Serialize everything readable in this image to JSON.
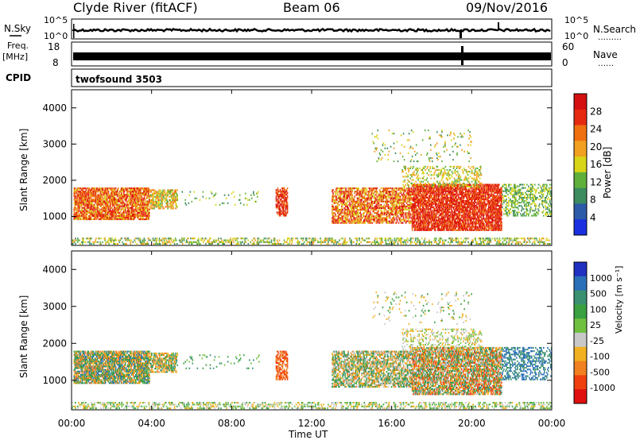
{
  "header": {
    "station": "Clyde River (fitACF)",
    "beam": "Beam 06",
    "date": "09/Nov/2016"
  },
  "nsky_panel": {
    "left_label": "N.Sky",
    "right_label": "N.Search",
    "right_legend_line": "………",
    "left_ticks": [
      "10^5",
      "10^0"
    ],
    "right_ticks": [
      "10^5",
      "10^0"
    ]
  },
  "freq_panel": {
    "left_label_1": "Freq.",
    "left_label_2": "[MHz]",
    "right_label": "Nave",
    "right_legend_line": "……",
    "left_ticks": [
      "18",
      "8"
    ],
    "right_ticks": [
      "60",
      "0"
    ]
  },
  "cpid_panel": {
    "label": "CPID",
    "mode": "twofsound 3503"
  },
  "x_axis": {
    "label": "Time UT",
    "ticks": [
      "00:00",
      "04:00",
      "08:00",
      "12:00",
      "16:00",
      "20:00",
      "00:00"
    ]
  },
  "chart_data": [
    {
      "type": "heatmap",
      "name": "power",
      "ylabel": "Slant Range [km]",
      "yticks": [
        "1000",
        "2000",
        "3000",
        "4000"
      ],
      "ylim": [
        200,
        4500
      ],
      "colorbar_label": "Power [dB]",
      "colorbar_ticks": [
        "4",
        "8",
        "12",
        "16",
        "20",
        "24",
        "28"
      ],
      "colors": [
        "#1a2fe0",
        "#2d5aa8",
        "#3d8c5f",
        "#5fb03a",
        "#d8d418",
        "#f2a020",
        "#f07010",
        "#e62a10",
        "#d41010"
      ],
      "approx_intensity_by_time": [
        {
          "t": "00:00-04:00",
          "range_km": [
            900,
            1800
          ],
          "level": "high"
        },
        {
          "t": "04:00-05:00",
          "range_km": [
            1300,
            1700
          ],
          "level": "medium"
        },
        {
          "t": "10:30",
          "range_km": [
            1000,
            1700
          ],
          "level": "high"
        },
        {
          "t": "13:00-21:30",
          "range_km": [
            700,
            2000
          ],
          "level": "high"
        }
      ]
    },
    {
      "type": "heatmap",
      "name": "velocity",
      "ylabel": "Slant Range [km]",
      "yticks": [
        "1000",
        "2000",
        "3000",
        "4000"
      ],
      "ylim": [
        200,
        4500
      ],
      "colorbar_label": "Velocity [m s⁻¹]",
      "colorbar_ticks": [
        "1000",
        "500",
        "100",
        "25",
        "-25",
        "-100",
        "-500",
        "-1000"
      ],
      "colors": [
        "#2030c0",
        "#2a70b8",
        "#3a9070",
        "#3aa040",
        "#70c040",
        "#c8c8c8",
        "#f0b020",
        "#f08020",
        "#f04010",
        "#e01010"
      ]
    }
  ]
}
